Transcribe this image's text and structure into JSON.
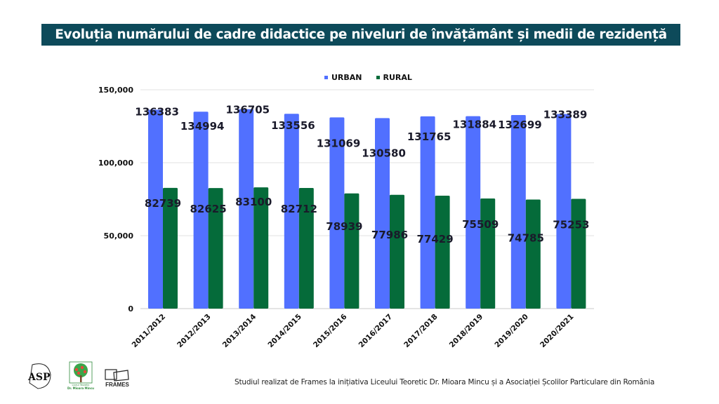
{
  "title": "Evoluția numărului de cadre didactice pe niveluri de învățământ și medii de rezidență",
  "footer": {
    "text": "Studiul realizat de  Frames la inițiativa Liceului Teoretic Dr. Mioara Mincu și a Asociației Școlilor Particulare din România",
    "logos": [
      {
        "name": "ASP",
        "label": "ASP"
      },
      {
        "name": "Liceul Teoretic Dr. Mioara Mincu",
        "label": "Dr. Mioara Mincu",
        "sub": "Liceul Teoretic"
      },
      {
        "name": "FRAMES",
        "label": "FRAMES"
      }
    ]
  },
  "colors": {
    "urban": "#5170ff",
    "rural": "#056b3a",
    "title_bg": "#0d4a5a",
    "grid": "#dddddd"
  },
  "chart_data": {
    "type": "bar",
    "title": "Evoluția numărului de cadre didactice pe niveluri de învățământ și medii de rezidență",
    "xlabel": "",
    "ylabel": "",
    "categories": [
      "2011/2012",
      "2012/2013",
      "2013/2014",
      "2014/2015",
      "2015/2016",
      "2016/2017",
      "2017/2018",
      "2018/2019",
      "2019/2020",
      "2020/2021"
    ],
    "series": [
      {
        "name": "URBAN",
        "color": "#5170ff",
        "values": [
          136383,
          134994,
          136705,
          133556,
          131069,
          130580,
          131765,
          131884,
          132699,
          133389
        ]
      },
      {
        "name": "RURAL",
        "color": "#056b3a",
        "values": [
          82739,
          82625,
          83100,
          82712,
          78939,
          77986,
          77429,
          75509,
          74785,
          75253
        ]
      }
    ],
    "ylim": [
      0,
      150000
    ],
    "yticks": [
      0,
      50000,
      100000,
      150000
    ],
    "ytick_labels": [
      "0",
      "50,000",
      "100,000",
      "150,000"
    ],
    "grid": true,
    "legend": "top-center",
    "data_labels": true
  }
}
